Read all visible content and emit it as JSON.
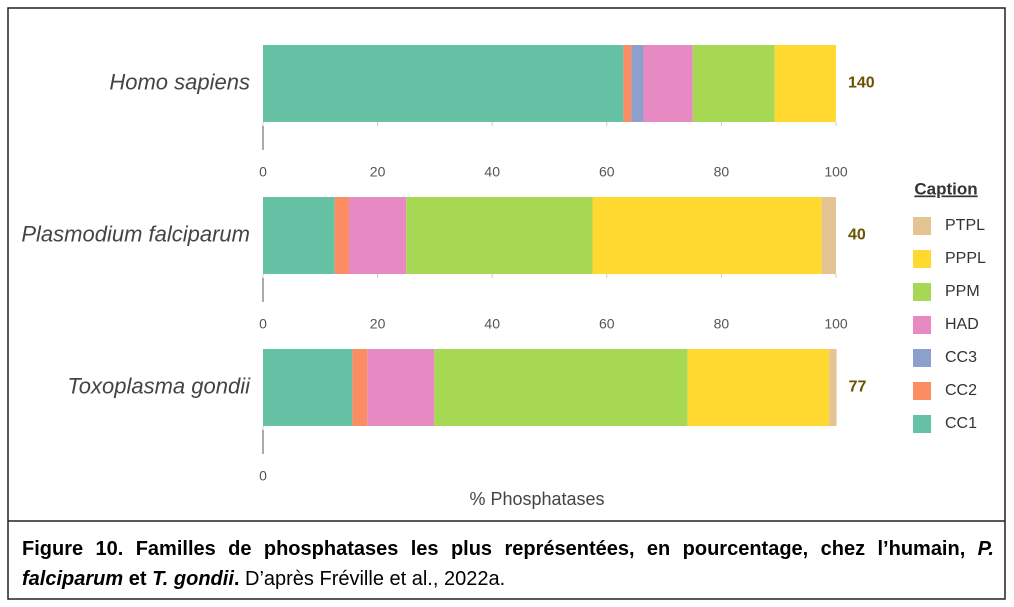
{
  "figure": {
    "xlabel": "% Phosphatases",
    "legend_title": "Caption",
    "caption": {
      "part1": "Figure 10. Familles de phosphatases les plus représentées, en pourcentage, chez l’humain, ",
      "part2": "P. falciparum",
      "part3": " et ",
      "part4": "T. gondii",
      "part5": ".",
      "part6": " D’après Fréville et al., 2022a."
    }
  },
  "chart_data": [
    {
      "type": "stacked_barh",
      "category": "Homo sapiens",
      "total": 140,
      "xlim": [
        0,
        100
      ],
      "xticks": [
        0,
        20,
        40,
        60,
        80,
        100
      ],
      "series": [
        {
          "name": "CC1",
          "color": "#66c2a5",
          "values": [
            62.9
          ]
        },
        {
          "name": "CC2",
          "color": "#fc8d62",
          "values": [
            1.4
          ]
        },
        {
          "name": "CC3",
          "color": "#8da0cb",
          "values": [
            2.1
          ]
        },
        {
          "name": "HAD",
          "color": "#e78ac3",
          "values": [
            8.6
          ]
        },
        {
          "name": "PPM",
          "color": "#a6d854",
          "values": [
            14.3
          ]
        },
        {
          "name": "PPPL",
          "color": "#ffd92f",
          "values": [
            10.7
          ]
        },
        {
          "name": "PTPL",
          "color": "#e5c494",
          "values": [
            0
          ]
        }
      ]
    },
    {
      "type": "stacked_barh",
      "category": "Plasmodium falciparum",
      "total": 40,
      "xlim": [
        0,
        100
      ],
      "xticks": [
        0,
        20,
        40,
        60,
        80,
        100
      ],
      "series": [
        {
          "name": "CC1",
          "color": "#66c2a5",
          "values": [
            12.5
          ]
        },
        {
          "name": "CC2",
          "color": "#fc8d62",
          "values": [
            2.5
          ]
        },
        {
          "name": "CC3",
          "color": "#8da0cb",
          "values": [
            0
          ]
        },
        {
          "name": "HAD",
          "color": "#e78ac3",
          "values": [
            10
          ]
        },
        {
          "name": "PPM",
          "color": "#a6d854",
          "values": [
            32.5
          ]
        },
        {
          "name": "PPPL",
          "color": "#ffd92f",
          "values": [
            40
          ]
        },
        {
          "name": "PTPL",
          "color": "#e5c494",
          "values": [
            2.5
          ]
        }
      ]
    },
    {
      "type": "stacked_barh",
      "category": "Toxoplasma gondii",
      "total": 77,
      "xlim": [
        0,
        100
      ],
      "xticks": [
        0
      ],
      "series": [
        {
          "name": "CC1",
          "color": "#66c2a5",
          "values": [
            15.6
          ]
        },
        {
          "name": "CC2",
          "color": "#fc8d62",
          "values": [
            2.6
          ]
        },
        {
          "name": "CC3",
          "color": "#8da0cb",
          "values": [
            0
          ]
        },
        {
          "name": "HAD",
          "color": "#e78ac3",
          "values": [
            11.7
          ]
        },
        {
          "name": "PPM",
          "color": "#a6d854",
          "values": [
            44.2
          ]
        },
        {
          "name": "PPPL",
          "color": "#ffd92f",
          "values": [
            24.7
          ]
        },
        {
          "name": "PTPL",
          "color": "#e5c494",
          "values": [
            1.3
          ]
        }
      ]
    }
  ]
}
